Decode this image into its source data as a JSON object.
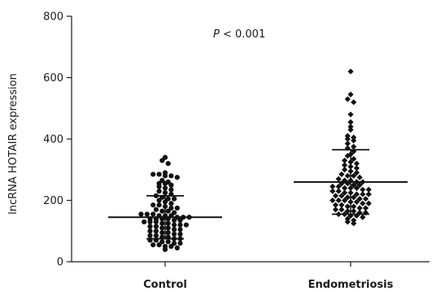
{
  "chart_data": {
    "type": "scatter",
    "ylabel": "lncRNA HOTAIR expression",
    "ylim": [
      0,
      800
    ],
    "yticks": [
      "0",
      "200",
      "400",
      "600",
      "800"
    ],
    "annotation": {
      "prefix": "P",
      "text": " < 0.001"
    },
    "categories": [
      "Control",
      "Endometriosis"
    ],
    "groups": [
      {
        "category": "Control",
        "marker": "circle",
        "mean": 145,
        "sd_low": 75,
        "sd_high": 215,
        "values": [
          340,
          330,
          320,
          290,
          285,
          285,
          280,
          280,
          275,
          265,
          260,
          255,
          255,
          250,
          245,
          240,
          235,
          230,
          225,
          220,
          215,
          210,
          205,
          205,
          200,
          195,
          190,
          185,
          185,
          180,
          175,
          175,
          170,
          165,
          165,
          160,
          155,
          155,
          155,
          150,
          150,
          150,
          145,
          145,
          145,
          140,
          140,
          140,
          140,
          135,
          135,
          130,
          130,
          130,
          125,
          125,
          120,
          120,
          120,
          115,
          115,
          110,
          110,
          105,
          105,
          100,
          100,
          95,
          95,
          90,
          90,
          85,
          85,
          80,
          80,
          75,
          75,
          70,
          70,
          65,
          65,
          60,
          60,
          55,
          55,
          50,
          50,
          45,
          40
        ]
      },
      {
        "category": "Endometriosis",
        "marker": "diamond",
        "mean": 260,
        "sd_low": 155,
        "sd_high": 365,
        "values": [
          620,
          545,
          530,
          520,
          480,
          455,
          440,
          430,
          410,
          405,
          400,
          395,
          385,
          375,
          370,
          360,
          350,
          345,
          335,
          330,
          325,
          320,
          315,
          310,
          305,
          300,
          295,
          290,
          285,
          280,
          280,
          275,
          270,
          265,
          265,
          260,
          260,
          255,
          255,
          250,
          250,
          245,
          245,
          240,
          240,
          240,
          235,
          235,
          230,
          230,
          225,
          225,
          220,
          220,
          220,
          215,
          215,
          210,
          210,
          205,
          205,
          200,
          200,
          200,
          195,
          195,
          190,
          190,
          185,
          185,
          180,
          180,
          175,
          175,
          170,
          170,
          165,
          165,
          160,
          160,
          155,
          155,
          150,
          150,
          145,
          140,
          135,
          130,
          125
        ]
      }
    ]
  }
}
